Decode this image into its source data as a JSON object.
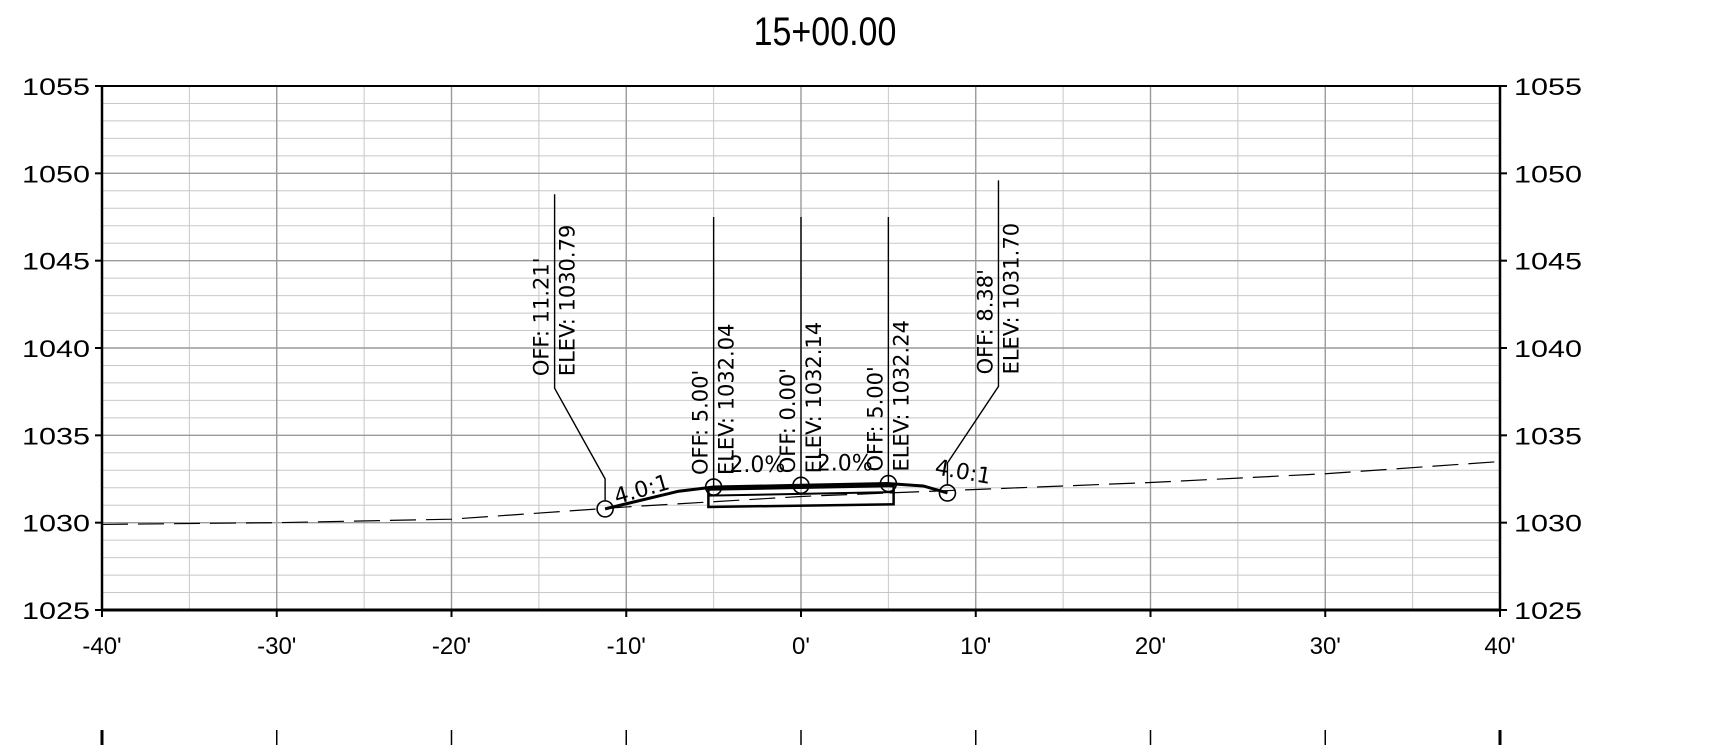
{
  "title": "15+00.00",
  "chart_data": {
    "type": "line",
    "title": "15+00.00",
    "x_range": [
      -40,
      40
    ],
    "y_range": [
      1025,
      1055
    ],
    "x_ticks": [
      "-40'",
      "-30'",
      "-20'",
      "-10'",
      "0'",
      "10'",
      "20'",
      "30'",
      "40'"
    ],
    "y_ticks": [
      "1025",
      "1030",
      "1035",
      "1040",
      "1045",
      "1050",
      "1055"
    ],
    "grid": true,
    "existing_ground": [
      [
        -40,
        1029.9
      ],
      [
        -30,
        1030.0
      ],
      [
        -20,
        1030.2
      ],
      [
        -10,
        1030.9
      ],
      [
        0,
        1031.5
      ],
      [
        10,
        1031.9
      ],
      [
        20,
        1032.3
      ],
      [
        30,
        1032.8
      ],
      [
        40,
        1033.5
      ]
    ],
    "design_surface": [
      [
        -11.21,
        1030.79
      ],
      [
        -7,
        1031.8
      ],
      [
        -5,
        1032.04
      ],
      [
        0,
        1032.14
      ],
      [
        5,
        1032.24
      ],
      [
        7,
        1032.1
      ],
      [
        8.38,
        1031.7
      ]
    ],
    "pavement_box": [
      [
        -5.3,
        1031.9
      ],
      [
        5.3,
        1032.1
      ],
      [
        5.3,
        1031.05
      ],
      [
        -5.3,
        1030.9
      ]
    ],
    "callouts": [
      {
        "off": "OFF: 11.21'",
        "elev": "ELEV: 1030.79",
        "x": -11.21,
        "y": 1030.79,
        "elbow_x": -14.1,
        "elbow_y": 1037.7,
        "top_y": 1048.8
      },
      {
        "off": "OFF: 5.00'",
        "elev": "ELEV: 1032.04",
        "x": -5.0,
        "y": 1032.04,
        "elbow_x": -5.0,
        "elbow_y": 1032.04,
        "top_y": 1047.5
      },
      {
        "off": "OFF: 0.00'",
        "elev": "ELEV: 1032.14",
        "x": 0.0,
        "y": 1032.14,
        "elbow_x": 0.0,
        "elbow_y": 1032.14,
        "top_y": 1047.5
      },
      {
        "off": "OFF: 5.00'",
        "elev": "ELEV: 1032.24",
        "x": 5.0,
        "y": 1032.24,
        "elbow_x": 5.0,
        "elbow_y": 1032.24,
        "top_y": 1047.5
      },
      {
        "off": "OFF: 8.38'",
        "elev": "ELEV: 1031.70",
        "x": 8.38,
        "y": 1031.7,
        "elbow_x": 11.3,
        "elbow_y": 1037.8,
        "top_y": 1049.6
      }
    ],
    "slope_labels": [
      {
        "text": "4.0:1",
        "x": -9.0,
        "y": 1031.5,
        "angle": -16
      },
      {
        "text": "2.0%",
        "x": -2.5,
        "y": 1032.9,
        "angle": 0
      },
      {
        "text": "2.0%",
        "x": 2.5,
        "y": 1033.0,
        "angle": 0
      },
      {
        "text": "4.0:1",
        "x": 9.2,
        "y": 1032.5,
        "angle": 10
      }
    ]
  }
}
